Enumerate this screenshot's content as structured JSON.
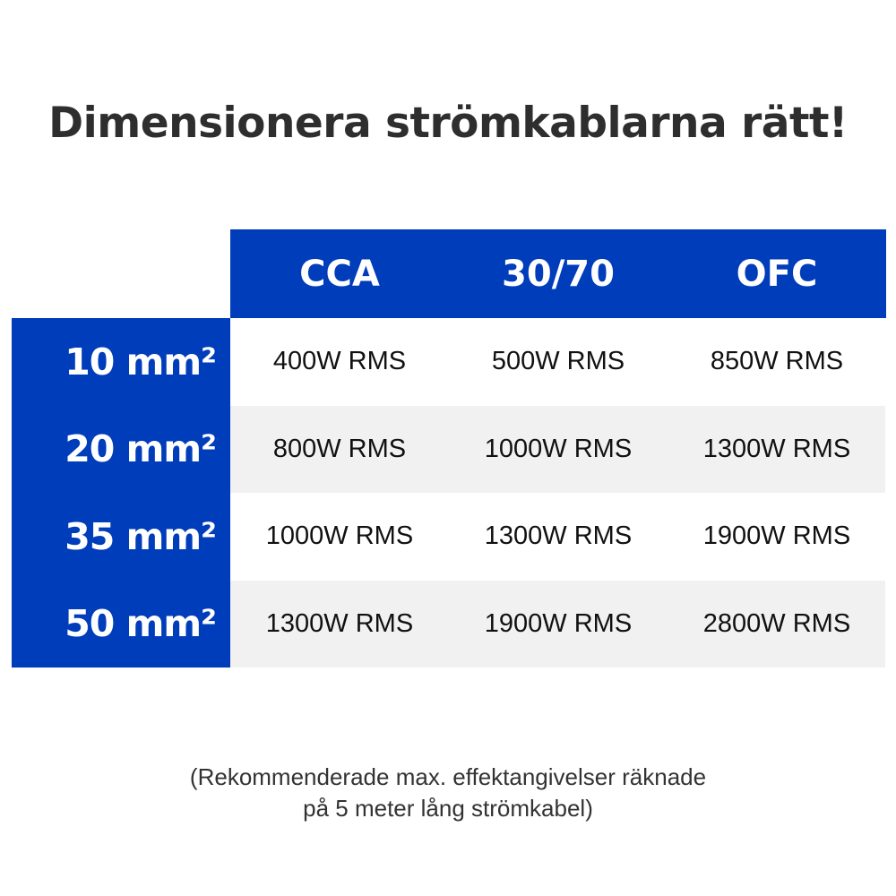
{
  "title": "Dimensionera strömkablarna rätt!",
  "colors": {
    "accent": "#003dbb",
    "alt_row": "#f1f1f1"
  },
  "columns": [
    "CCA",
    "30/70",
    "OFC"
  ],
  "rows": [
    {
      "label": "10 mm²",
      "values": [
        "400W RMS",
        "500W RMS",
        "850W RMS"
      ]
    },
    {
      "label": "20 mm²",
      "values": [
        "800W RMS",
        "1000W RMS",
        "1300W RMS"
      ]
    },
    {
      "label": "35 mm²",
      "values": [
        "1000W RMS",
        "1300W RMS",
        "1900W RMS"
      ]
    },
    {
      "label": "50 mm²",
      "values": [
        "1300W RMS",
        "1900W RMS",
        "2800W RMS"
      ]
    }
  ],
  "footnote": {
    "line1": "(Rekommenderade max. effektangivelser räknade",
    "line2": "på 5 meter lång strömkabel)"
  }
}
